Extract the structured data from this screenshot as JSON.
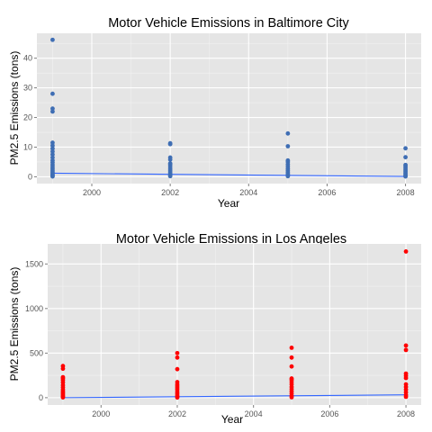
{
  "chart_data": [
    {
      "type": "scatter",
      "title": "Motor Vehicle Emissions in Baltimore City",
      "xlabel": "Year",
      "ylabel": "PM2.5 Emissions (tons)",
      "xlim": [
        1998.6,
        2008.4
      ],
      "ylim": [
        -2.3,
        48.4
      ],
      "xticks": [
        2000,
        2002,
        2004,
        2006,
        2008
      ],
      "yticks": [
        0,
        10,
        20,
        30,
        40
      ],
      "grid": true,
      "point_color": "#3F6EB4",
      "line_color": "#3366FF",
      "series": [
        {
          "points": [
            [
              1999,
              46.2
            ],
            [
              1999,
              28.0
            ],
            [
              1999,
              23.0
            ],
            [
              1999,
              22.0
            ],
            [
              1999,
              11.5
            ],
            [
              1999,
              10.5
            ],
            [
              1999,
              9.5
            ],
            [
              1999,
              8.5
            ],
            [
              1999,
              7.5
            ],
            [
              1999,
              6.5
            ],
            [
              1999,
              5.5
            ],
            [
              1999,
              4.8
            ],
            [
              1999,
              4.0
            ],
            [
              1999,
              3.3
            ],
            [
              1999,
              2.7
            ],
            [
              1999,
              2.1
            ],
            [
              1999,
              1.6
            ],
            [
              1999,
              1.1
            ],
            [
              1999,
              0.7
            ],
            [
              1999,
              0.4
            ],
            [
              1999,
              0.1
            ],
            [
              2002,
              11.3
            ],
            [
              2002,
              11.0
            ],
            [
              2002,
              6.5
            ],
            [
              2002,
              5.8
            ],
            [
              2002,
              4.5
            ],
            [
              2002,
              4.0
            ],
            [
              2002,
              3.3
            ],
            [
              2002,
              2.6
            ],
            [
              2002,
              2.0
            ],
            [
              2002,
              1.4
            ],
            [
              2002,
              0.9
            ],
            [
              2002,
              0.5
            ],
            [
              2002,
              0.2
            ],
            [
              2005,
              14.6
            ],
            [
              2005,
              10.3
            ],
            [
              2005,
              5.5
            ],
            [
              2005,
              5.0
            ],
            [
              2005,
              4.2
            ],
            [
              2005,
              3.5
            ],
            [
              2005,
              2.8
            ],
            [
              2005,
              2.2
            ],
            [
              2005,
              1.6
            ],
            [
              2005,
              1.0
            ],
            [
              2005,
              0.6
            ],
            [
              2005,
              0.2
            ],
            [
              2008,
              9.6
            ],
            [
              2008,
              6.6
            ],
            [
              2008,
              4.0
            ],
            [
              2008,
              3.5
            ],
            [
              2008,
              2.9
            ],
            [
              2008,
              2.3
            ],
            [
              2008,
              1.8
            ],
            [
              2008,
              1.3
            ],
            [
              2008,
              0.8
            ],
            [
              2008,
              0.4
            ],
            [
              2008,
              0.1
            ]
          ]
        }
      ],
      "trend": {
        "x": [
          1999,
          2008
        ],
        "y": [
          1.2,
          0.1
        ]
      }
    },
    {
      "type": "scatter",
      "title": "Motor Vehicle Emissions in Los Angeles",
      "xlabel": "Year",
      "ylabel": "PM2.5 Emissions (tons)",
      "xlim": [
        1998.6,
        2008.4
      ],
      "ylim": [
        -82,
        1725
      ],
      "xticks": [
        2000,
        2002,
        2004,
        2006,
        2008
      ],
      "yticks": [
        0,
        500,
        1000,
        1500
      ],
      "grid": true,
      "point_color": "#FF0000",
      "line_color": "#3366FF",
      "series": [
        {
          "points": [
            [
              1999,
              355
            ],
            [
              1999,
              325
            ],
            [
              1999,
              230
            ],
            [
              1999,
              215
            ],
            [
              1999,
              195
            ],
            [
              1999,
              170
            ],
            [
              1999,
              140
            ],
            [
              1999,
              115
            ],
            [
              1999,
              90
            ],
            [
              1999,
              70
            ],
            [
              1999,
              55
            ],
            [
              1999,
              40
            ],
            [
              1999,
              25
            ],
            [
              1999,
              12
            ],
            [
              1999,
              3
            ],
            [
              2002,
              500
            ],
            [
              2002,
              450
            ],
            [
              2002,
              320
            ],
            [
              2002,
              175
            ],
            [
              2002,
              150
            ],
            [
              2002,
              130
            ],
            [
              2002,
              110
            ],
            [
              2002,
              90
            ],
            [
              2002,
              65
            ],
            [
              2002,
              45
            ],
            [
              2002,
              25
            ],
            [
              2002,
              10
            ],
            [
              2002,
              2
            ],
            [
              2005,
              560
            ],
            [
              2005,
              450
            ],
            [
              2005,
              350
            ],
            [
              2005,
              215
            ],
            [
              2005,
              200
            ],
            [
              2005,
              175
            ],
            [
              2005,
              150
            ],
            [
              2005,
              120
            ],
            [
              2005,
              95
            ],
            [
              2005,
              70
            ],
            [
              2005,
              45
            ],
            [
              2005,
              20
            ],
            [
              2005,
              5
            ],
            [
              2008,
              1640
            ],
            [
              2008,
              585
            ],
            [
              2008,
              535
            ],
            [
              2008,
              270
            ],
            [
              2008,
              245
            ],
            [
              2008,
              220
            ],
            [
              2008,
              150
            ],
            [
              2008,
              120
            ],
            [
              2008,
              90
            ],
            [
              2008,
              60
            ],
            [
              2008,
              30
            ],
            [
              2008,
              10
            ]
          ]
        }
      ],
      "trend": {
        "x": [
          1999,
          2008
        ],
        "y": [
          0,
          32
        ]
      }
    }
  ]
}
